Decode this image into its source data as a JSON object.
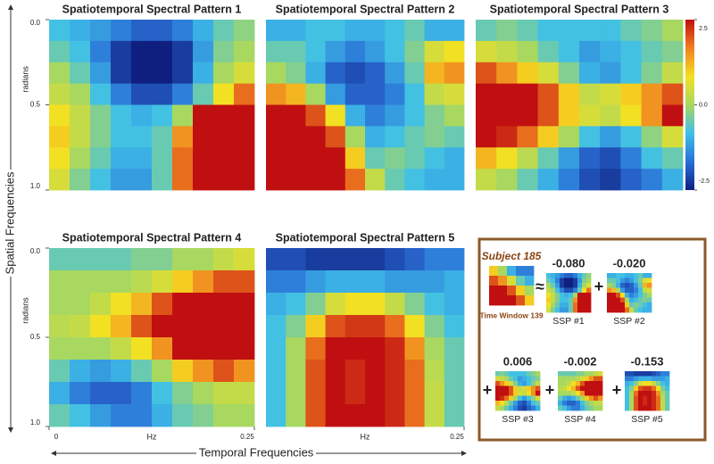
{
  "chart_data": [
    {
      "type": "heatmap",
      "title": "Spatiotemporal Spectral Pattern 1",
      "ylabel": "radians",
      "xlim": [
        0,
        0.25
      ],
      "ylim": [
        0,
        1
      ],
      "yticks": [
        {
          "value": 0,
          "label": "0.0"
        },
        {
          "value": 0.5,
          "label": "0.5"
        },
        {
          "value": 1,
          "label": "1.0"
        }
      ],
      "z": [
        [
          -0.8,
          -1,
          -1.2,
          -1.5,
          -1.8,
          -1.8,
          -1.5,
          -1,
          -0.5,
          -0.2
        ],
        [
          -0.5,
          -0.8,
          -1.5,
          -2.2,
          -2.5,
          -2.5,
          -2.2,
          -1.2,
          -0.3,
          0
        ],
        [
          0,
          -0.5,
          -1.2,
          -2.2,
          -2.5,
          -2.5,
          -2.2,
          -1,
          0,
          0.5
        ],
        [
          0.3,
          0,
          -0.8,
          -1.5,
          -2,
          -2,
          -1.5,
          -0.5,
          0.8,
          1.8
        ],
        [
          0.8,
          0.3,
          -0.3,
          -0.8,
          -1,
          -0.8,
          0,
          2.5,
          2.5,
          2.5
        ],
        [
          1,
          0.3,
          -0.3,
          -0.8,
          -0.8,
          -0.5,
          1.5,
          2.5,
          2.5,
          2.5
        ],
        [
          0.8,
          0,
          -0.5,
          -1,
          -1,
          -0.5,
          1.8,
          2.5,
          2.5,
          2.5
        ],
        [
          0.5,
          -0.3,
          -0.8,
          -1.2,
          -1.2,
          -0.5,
          1.8,
          2.5,
          2.5,
          2.5
        ]
      ]
    },
    {
      "type": "heatmap",
      "title": "Spatiotemporal Spectral Pattern 2",
      "xlim": [
        0,
        0.25
      ],
      "ylim": [
        0,
        1
      ],
      "z": [
        [
          -1,
          -1,
          -0.8,
          -0.8,
          -1,
          -1,
          -0.8,
          -0.5,
          -1,
          -1
        ],
        [
          -0.5,
          -0.5,
          -0.8,
          -1.2,
          -1.5,
          -1.2,
          -0.8,
          -0.3,
          0.5,
          0.8
        ],
        [
          0,
          -0.3,
          -1,
          -1.8,
          -2,
          -1.8,
          -1.2,
          -0.5,
          1.2,
          1.5
        ],
        [
          1.5,
          1.2,
          0,
          -1.2,
          -1.8,
          -1.8,
          -1.5,
          -0.8,
          0.3,
          0.5
        ],
        [
          2.5,
          2.5,
          2,
          0.8,
          -1,
          -1.5,
          -1.2,
          -0.8,
          -0.3,
          0
        ],
        [
          2.5,
          2.5,
          2.5,
          2,
          0,
          -1,
          -0.8,
          -0.5,
          -0.3,
          -0.5
        ],
        [
          2.5,
          2.5,
          2.5,
          2.5,
          1,
          -0.5,
          -0.3,
          -0.5,
          -0.8,
          -1
        ],
        [
          2.5,
          2.5,
          2.5,
          2.5,
          1.8,
          0.3,
          -0.5,
          -0.8,
          -1,
          -1
        ]
      ]
    },
    {
      "type": "heatmap",
      "title": "Spatiotemporal Spectral Pattern 3",
      "xlim": [
        0,
        0.25
      ],
      "ylim": [
        0,
        1
      ],
      "z": [
        [
          -0.5,
          -0.3,
          -0.5,
          -0.8,
          -0.8,
          -0.8,
          -0.8,
          -0.5,
          -0.3,
          0
        ],
        [
          0.5,
          0.3,
          0,
          -0.5,
          -0.8,
          -1.2,
          -1,
          -0.8,
          -0.5,
          -0.3
        ],
        [
          2,
          1.5,
          1,
          0.5,
          -0.3,
          -1,
          -1.2,
          -0.8,
          -0.3,
          0.3
        ],
        [
          2.5,
          2.5,
          2.5,
          2,
          1,
          0.3,
          0.5,
          1,
          1.5,
          2
        ],
        [
          2.5,
          2.5,
          2.5,
          2,
          1,
          0.5,
          0.3,
          0.8,
          1.5,
          2.5
        ],
        [
          2.5,
          2.3,
          1.8,
          1,
          0,
          -0.8,
          -1.2,
          -0.8,
          -0.2,
          0.5
        ],
        [
          1.2,
          0.8,
          0.2,
          -0.5,
          -1.2,
          -1.8,
          -2,
          -1.5,
          -0.8,
          -0.5
        ],
        [
          0.3,
          0,
          -0.5,
          -1,
          -1.5,
          -2,
          -2.2,
          -1.8,
          -1.5,
          -1
        ]
      ]
    },
    {
      "type": "heatmap",
      "title": "Spatiotemporal Spectral Pattern 4",
      "ylabel": "radians",
      "xlabel": "Hz",
      "xlim": [
        0,
        0.25
      ],
      "ylim": [
        0,
        1
      ],
      "yticks": [
        {
          "value": 0,
          "label": "0.0"
        },
        {
          "value": 0.5,
          "label": "0.5"
        },
        {
          "value": 1,
          "label": "1.0"
        }
      ],
      "xticks": [
        0,
        0.25
      ],
      "z": [
        [
          -0.5,
          -0.5,
          -0.5,
          -0.5,
          -0.3,
          -0.3,
          0,
          0,
          0.3,
          0.5
        ],
        [
          0,
          0,
          0,
          0,
          0.2,
          0.5,
          1,
          1.5,
          2,
          2
        ],
        [
          0,
          0,
          0.3,
          0.8,
          1.2,
          2,
          2.5,
          2.5,
          2.5,
          2.5
        ],
        [
          0.2,
          0.3,
          0.8,
          1.2,
          2,
          2.5,
          2.5,
          2.5,
          2.5,
          2.5
        ],
        [
          0,
          0,
          0,
          0.3,
          0.8,
          1.5,
          2.5,
          2.5,
          2.5,
          2.5
        ],
        [
          -0.5,
          -1,
          -1.2,
          -1,
          -0.5,
          0,
          1,
          1.5,
          2,
          1.5
        ],
        [
          -1,
          -1.5,
          -1.8,
          -1.8,
          -1.5,
          -0.8,
          -0.3,
          0,
          0.3,
          0.3
        ],
        [
          -0.5,
          -0.8,
          -1.2,
          -1.5,
          -1.5,
          -1,
          -0.5,
          -0.3,
          0,
          0
        ]
      ]
    },
    {
      "type": "heatmap",
      "title": "Spatiotemporal Spectral Pattern 5",
      "xlabel": "Hz",
      "xlim": [
        0,
        0.25
      ],
      "ylim": [
        0,
        1
      ],
      "xticks": [
        0.25
      ],
      "z": [
        [
          -2,
          -2,
          -2.2,
          -2.2,
          -2.2,
          -2.2,
          -2,
          -1.8,
          -1.5,
          -1.5
        ],
        [
          -1.5,
          -1.5,
          -1.2,
          -1,
          -1,
          -1,
          -1.2,
          -1.2,
          -1.2,
          -1
        ],
        [
          -1,
          -0.8,
          -0.3,
          0.5,
          0.8,
          0.8,
          0.3,
          -0.3,
          -0.8,
          -1
        ],
        [
          -0.8,
          -0.3,
          1,
          2,
          2.2,
          2.2,
          1.8,
          0.8,
          -0.3,
          -0.8
        ],
        [
          -0.8,
          0,
          1.8,
          2.5,
          2.5,
          2.5,
          2.3,
          1.5,
          0,
          -0.5
        ],
        [
          -0.8,
          0,
          2,
          2.5,
          2.3,
          2.5,
          2.3,
          1.8,
          0.2,
          -0.5
        ],
        [
          -0.8,
          0,
          2,
          2.5,
          2.3,
          2.5,
          2.3,
          1.8,
          0.3,
          -0.5
        ],
        [
          -0.8,
          0,
          2,
          2.5,
          2.5,
          2.5,
          2.3,
          1.8,
          0.3,
          -0.5
        ]
      ]
    }
  ],
  "colorbar": {
    "clim": [
      -2.5,
      2.5
    ],
    "ticks": [
      2.5,
      {
        "value": 0,
        "label": "0.0"
      },
      -2.5
    ],
    "colormap": [
      "#0f1f80",
      "#2a6fd6",
      "#3fc0e8",
      "#a8d860",
      "#f5e020",
      "#f08020",
      "#c00f10"
    ]
  },
  "figure": {
    "ylabel": "Spatial Frequencies",
    "xlabel": "Temporal Frequencies"
  },
  "inset": {
    "title": "Subject 185",
    "caption": "Time Window 139",
    "z": [
      [
        1,
        0,
        -1,
        -1.5,
        -1.5
      ],
      [
        2,
        1.5,
        0.5,
        -0.5,
        -1
      ],
      [
        2.5,
        2.5,
        2,
        1,
        0
      ],
      [
        2.5,
        2.5,
        2.5,
        2,
        1
      ]
    ],
    "approx": "≈",
    "plus": "+",
    "coefficients": [
      -0.08,
      -0.02,
      0.006,
      -0.002,
      -0.153
    ],
    "value_labels": [
      "-0.080",
      "-0.020",
      "0.006",
      "-0.002",
      "-0.153"
    ],
    "labels": [
      "SSP #1",
      "SSP #2",
      "SSP #3",
      "SSP #4",
      "SSP #5"
    ]
  }
}
